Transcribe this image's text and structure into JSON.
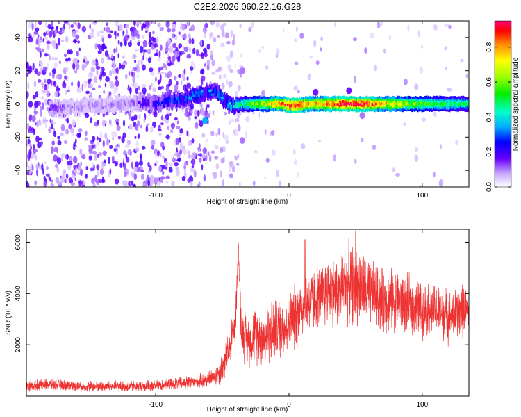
{
  "title": "C2E2.2026.060.22.16.G28",
  "chart_data": [
    {
      "type": "heatmap",
      "xlabel": "Height of straight line (km)",
      "ylabel": "Frequency (Hz)",
      "xlim": [
        -197,
        135
      ],
      "ylim": [
        -50,
        50
      ],
      "xticks": [
        -100,
        0,
        100
      ],
      "yticks": [
        -40,
        -20,
        0,
        20,
        40
      ],
      "colorbar": {
        "label": "Normalized spectral amplitude",
        "range": [
          0.0,
          0.95
        ],
        "ticks": [
          0.0,
          0.2,
          0.4,
          0.6,
          0.8
        ],
        "tick_labels": [
          "0.0",
          "0.2",
          "0.4",
          "0.6",
          "0.8"
        ]
      },
      "signal_trace": [
        {
          "x": -180,
          "f": -3,
          "amp": 0.15
        },
        {
          "x": -160,
          "f": -2,
          "amp": 0.1
        },
        {
          "x": -140,
          "f": -1,
          "amp": 0.1
        },
        {
          "x": -120,
          "f": 0,
          "amp": 0.1
        },
        {
          "x": -110,
          "f": 1,
          "amp": 0.2
        },
        {
          "x": -100,
          "f": 0,
          "amp": 0.25
        },
        {
          "x": -90,
          "f": 2,
          "amp": 0.3
        },
        {
          "x": -80,
          "f": 3,
          "amp": 0.3
        },
        {
          "x": -72,
          "f": 5,
          "amp": 0.35
        },
        {
          "x": -63,
          "f": 7,
          "amp": 0.35
        },
        {
          "x": -55,
          "f": 7,
          "amp": 0.3
        },
        {
          "x": -50,
          "f": 3,
          "amp": 0.4
        },
        {
          "x": -45,
          "f": -1,
          "amp": 0.4
        },
        {
          "x": -35,
          "f": 0,
          "amp": 0.45
        },
        {
          "x": -25,
          "f": 0,
          "amp": 0.6
        },
        {
          "x": -15,
          "f": 0,
          "amp": 0.7
        },
        {
          "x": -5,
          "f": 0,
          "amp": 0.85
        },
        {
          "x": 0,
          "f": -1,
          "amp": 0.9
        },
        {
          "x": 5,
          "f": -1,
          "amp": 0.9
        },
        {
          "x": 15,
          "f": 0,
          "amp": 0.75
        },
        {
          "x": 25,
          "f": 0,
          "amp": 0.8
        },
        {
          "x": 35,
          "f": 0,
          "amp": 0.9
        },
        {
          "x": 45,
          "f": 0,
          "amp": 0.92
        },
        {
          "x": 55,
          "f": 0,
          "amp": 0.9
        },
        {
          "x": 70,
          "f": 0,
          "amp": 0.75
        },
        {
          "x": 85,
          "f": 0,
          "amp": 0.65
        },
        {
          "x": 100,
          "f": 0,
          "amp": 0.55
        },
        {
          "x": 115,
          "f": 0,
          "amp": 0.5
        },
        {
          "x": 135,
          "f": 0,
          "amp": 0.45
        }
      ],
      "noise_features": [
        {
          "x": -63,
          "f": -10,
          "amp": 0.35
        },
        {
          "x": -35,
          "f": -22,
          "amp": 0.1
        },
        {
          "x": -35,
          "f": 20,
          "amp": 0.1
        },
        {
          "x": 20,
          "f": 7,
          "amp": 0.15
        },
        {
          "x": 45,
          "f": 8,
          "amp": 0.15
        },
        {
          "x": 55,
          "f": -7,
          "amp": 0.1
        }
      ]
    },
    {
      "type": "line",
      "xlabel": "Height of straight line (km)",
      "ylabel": "SNR (10 * v/v)",
      "xlim": [
        -197,
        135
      ],
      "ylim": [
        0,
        6500
      ],
      "xticks": [
        -100,
        0,
        100
      ],
      "yticks": [
        2000,
        4000,
        6000
      ],
      "color": "#ee3333",
      "series": [
        {
          "name": "SNR",
          "x": [
            -197,
            -180,
            -160,
            -140,
            -120,
            -100,
            -90,
            -80,
            -70,
            -60,
            -55,
            -50,
            -45,
            -40,
            -38,
            -36,
            -34,
            -30,
            -25,
            -20,
            -15,
            -10,
            -5,
            0,
            5,
            10,
            15,
            20,
            25,
            30,
            35,
            40,
            45,
            50,
            55,
            60,
            65,
            70,
            75,
            80,
            85,
            90,
            95,
            100,
            105,
            110,
            115,
            120,
            125,
            130,
            135
          ],
          "y": [
            400,
            450,
            400,
            380,
            380,
            400,
            450,
            500,
            550,
            650,
            800,
            1100,
            1800,
            3000,
            5900,
            2800,
            2400,
            2200,
            2400,
            2300,
            2500,
            2600,
            2700,
            2900,
            3100,
            3500,
            3700,
            3800,
            3900,
            4200,
            4000,
            4200,
            4400,
            4300,
            4200,
            4000,
            3900,
            3700,
            3700,
            3800,
            3600,
            3600,
            3500,
            3400,
            3400,
            3300,
            3200,
            3100,
            3200,
            3300,
            3300
          ],
          "noise_amplitude": [
            250,
            250,
            250,
            250,
            250,
            250,
            250,
            300,
            300,
            400,
            500,
            700,
            900,
            1200,
            400,
            1200,
            1200,
            1200,
            1300,
            1300,
            1400,
            1400,
            1400,
            1500,
            1500,
            1500,
            1500,
            1500,
            1500,
            1600,
            1600,
            1700,
            1800,
            1800,
            1700,
            1600,
            1500,
            1500,
            1400,
            1400,
            1400,
            1300,
            1300,
            1300,
            1200,
            1200,
            1200,
            1200,
            1200,
            1200,
            1200
          ],
          "peaks": [
            {
              "x": -38,
              "y": 5950
            },
            {
              "x": 12,
              "y": 6100
            },
            {
              "x": 50,
              "y": 6450
            },
            {
              "x": 42,
              "y": 6250
            }
          ]
        }
      ]
    }
  ]
}
